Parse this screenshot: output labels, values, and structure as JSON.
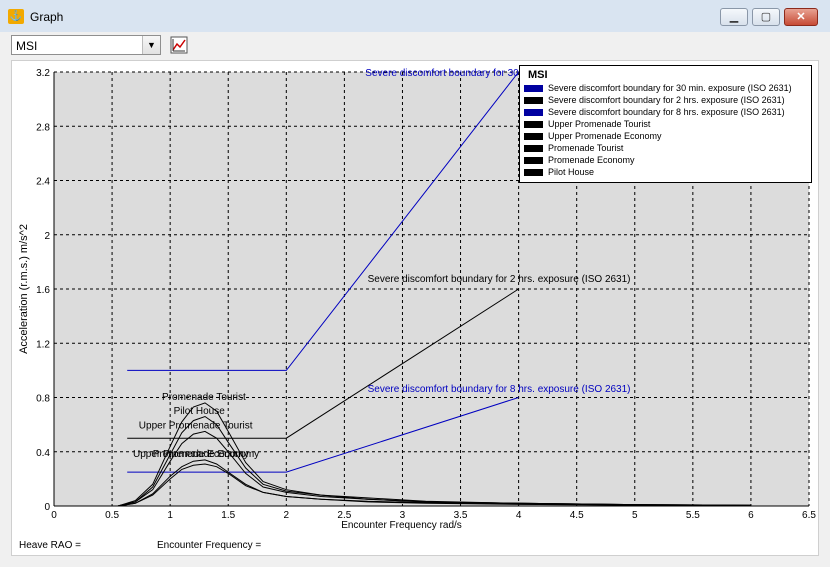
{
  "window": {
    "title": "Graph",
    "app_icon": "ship-icon"
  },
  "toolbar": {
    "dropdown_value": "MSI",
    "graph_icon": "chart-settings-icon"
  },
  "legend": {
    "title": "MSI",
    "items": [
      {
        "label": "Severe discomfort boundary  for 30 min. exposure (ISO 2631)",
        "color": "#0000a0"
      },
      {
        "label": "Severe discomfort boundary  for 2 hrs. exposure (ISO 2631)",
        "color": "#000000"
      },
      {
        "label": "Severe discomfort boundary  for 8 hrs. exposure (ISO 2631)",
        "color": "#0000a0"
      },
      {
        "label": "Upper Promenade Tourist",
        "color": "#000000"
      },
      {
        "label": "Upper Promenade Economy",
        "color": "#000000"
      },
      {
        "label": "Promenade Tourist",
        "color": "#000000"
      },
      {
        "label": "Promenade Economy",
        "color": "#000000"
      },
      {
        "label": "Pilot House",
        "color": "#000000"
      }
    ]
  },
  "status": {
    "heave_label": "Heave RAO =",
    "freq_label": "Encounter Frequency ="
  },
  "chart_data": {
    "type": "line",
    "xlabel": "Encounter Frequency  rad/s",
    "ylabel": "Acceleration  (r.m.s.)  m/s^2",
    "xlim": [
      0,
      6.5
    ],
    "ylim": [
      0,
      3.2
    ],
    "xticks": [
      "0",
      "0.5",
      "1",
      "1.5",
      "2",
      "2.5",
      "3",
      "3.5",
      "4",
      "4.5",
      "5",
      "5.5",
      "6",
      "6.5"
    ],
    "yticks": [
      "0",
      "0.4",
      "0.8",
      "1.2",
      "1.6",
      "2",
      "2.4",
      "2.8",
      "3.2"
    ],
    "grid": true,
    "legend_position": "top-right",
    "series": [
      {
        "name": "Severe discomfort boundary for 30 min. exposure (ISO 2631)",
        "color": "#0000c0",
        "x": [
          0.63,
          2.0,
          4.0
        ],
        "y": [
          1.0,
          1.0,
          3.2
        ]
      },
      {
        "name": "Severe discomfort boundary for 2 hrs. exposure (ISO 2631)",
        "color": "#000000",
        "x": [
          0.63,
          2.0,
          4.0
        ],
        "y": [
          0.5,
          0.5,
          1.6
        ]
      },
      {
        "name": "Severe discomfort boundary for 8 hrs. exposure (ISO 2631)",
        "color": "#0000c0",
        "x": [
          0.63,
          2.0,
          4.0
        ],
        "y": [
          0.25,
          0.25,
          0.8
        ]
      },
      {
        "name": "Upper Promenade Tourist",
        "color": "#000000",
        "x": [
          0.55,
          0.7,
          0.85,
          1.0,
          1.1,
          1.2,
          1.3,
          1.4,
          1.5,
          1.65,
          1.8,
          2.0,
          2.3,
          2.7,
          3.2,
          4.0,
          5.0,
          6.0
        ],
        "y": [
          0,
          0.03,
          0.12,
          0.33,
          0.46,
          0.53,
          0.55,
          0.5,
          0.4,
          0.24,
          0.14,
          0.1,
          0.07,
          0.05,
          0.03,
          0.02,
          0.01,
          0.005
        ]
      },
      {
        "name": "Upper Promenade Economy",
        "color": "#000000",
        "x": [
          0.55,
          0.7,
          0.85,
          1.0,
          1.1,
          1.2,
          1.3,
          1.4,
          1.5,
          1.65,
          1.8,
          2.0,
          2.3,
          2.7,
          3.2,
          4.0,
          5.0,
          6.0
        ],
        "y": [
          0,
          0.02,
          0.09,
          0.22,
          0.29,
          0.33,
          0.34,
          0.31,
          0.25,
          0.16,
          0.1,
          0.07,
          0.05,
          0.035,
          0.025,
          0.015,
          0.008,
          0.004
        ]
      },
      {
        "name": "Promenade Tourist",
        "color": "#000000",
        "x": [
          0.55,
          0.7,
          0.85,
          1.0,
          1.1,
          1.2,
          1.3,
          1.4,
          1.5,
          1.65,
          1.8,
          2.0,
          2.3,
          2.7,
          3.2,
          4.0,
          5.0,
          6.0
        ],
        "y": [
          0,
          0.04,
          0.16,
          0.44,
          0.62,
          0.73,
          0.76,
          0.7,
          0.55,
          0.32,
          0.18,
          0.12,
          0.08,
          0.06,
          0.035,
          0.02,
          0.01,
          0.005
        ]
      },
      {
        "name": "Promenade Economy",
        "color": "#000000",
        "x": [
          0.55,
          0.7,
          0.85,
          1.0,
          1.1,
          1.2,
          1.3,
          1.4,
          1.5,
          1.65,
          1.8,
          2.0,
          2.3,
          2.7,
          3.2,
          4.0,
          5.0,
          6.0
        ],
        "y": [
          0,
          0.02,
          0.08,
          0.2,
          0.27,
          0.3,
          0.31,
          0.29,
          0.24,
          0.15,
          0.1,
          0.07,
          0.05,
          0.03,
          0.02,
          0.012,
          0.007,
          0.003
        ]
      },
      {
        "name": "Pilot House",
        "color": "#000000",
        "x": [
          0.55,
          0.7,
          0.85,
          1.0,
          1.1,
          1.2,
          1.3,
          1.4,
          1.5,
          1.65,
          1.8,
          2.0,
          2.3,
          2.7,
          3.2,
          4.0,
          5.0,
          6.0
        ],
        "y": [
          0,
          0.03,
          0.14,
          0.38,
          0.54,
          0.63,
          0.66,
          0.6,
          0.47,
          0.28,
          0.16,
          0.11,
          0.08,
          0.05,
          0.03,
          0.02,
          0.01,
          0.005
        ]
      }
    ],
    "annotations": [
      {
        "text": "Severe discomfort boundary  for 30 min. exposure (ISO 2631)",
        "x": 2.68,
        "y": 3.17,
        "color": "#0000c0"
      },
      {
        "text": "Severe discomfort boundary  for 2 hrs. exposure (ISO 2631)",
        "x": 2.7,
        "y": 1.65,
        "color": "#000000"
      },
      {
        "text": "Severe discomfort boundary  for 8 hrs. exposure (ISO 2631)",
        "x": 2.7,
        "y": 0.84,
        "color": "#0000c0"
      },
      {
        "text": "Promenade Tourist",
        "x": 0.93,
        "y": 0.78,
        "color": "#000000"
      },
      {
        "text": "Pilot House",
        "x": 1.03,
        "y": 0.68,
        "color": "#000000"
      },
      {
        "text": "Upper Promenade Tourist",
        "x": 0.73,
        "y": 0.57,
        "color": "#000000"
      },
      {
        "text": "Upper Promenade Economy",
        "x": 0.68,
        "y": 0.36,
        "color": "#000000"
      },
      {
        "text": "Promenade Economy",
        "x": 0.85,
        "y": 0.36,
        "color": "#000000"
      }
    ]
  }
}
